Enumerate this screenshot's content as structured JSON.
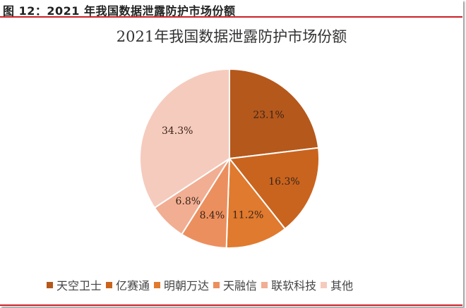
{
  "figure_caption": "图 12：2021 年我国数据泄露防护市场份额",
  "chart_data": {
    "type": "pie",
    "title": "2021年我国数据泄露防护市场份额",
    "categories": [
      "天空卫士",
      "亿赛通",
      "明朝万达",
      "天融信",
      "联软科技",
      "其他"
    ],
    "values": [
      23.1,
      16.3,
      11.2,
      8.4,
      6.8,
      34.3
    ],
    "labels": [
      "23.1%",
      "16.3%",
      "11.2%",
      "8.4%",
      "6.8%",
      "34.3%"
    ],
    "colors": [
      "#b5581c",
      "#c9641f",
      "#e07a2e",
      "#ec8f5e",
      "#f1ae93",
      "#f5cbbd"
    ],
    "start_angle": "12 o'clock, clockwise",
    "legend_position": "bottom"
  },
  "legend": [
    {
      "label": "天空卫士",
      "color": "#b5581c"
    },
    {
      "label": "亿赛通",
      "color": "#c9641f"
    },
    {
      "label": "明朝万达",
      "color": "#e07a2e"
    },
    {
      "label": "天融信",
      "color": "#ec8f5e"
    },
    {
      "label": "联软科技",
      "color": "#f1ae93"
    },
    {
      "label": "其他",
      "color": "#f5cbbd"
    }
  ],
  "theme": {
    "rule_color": "#cc1f26"
  }
}
